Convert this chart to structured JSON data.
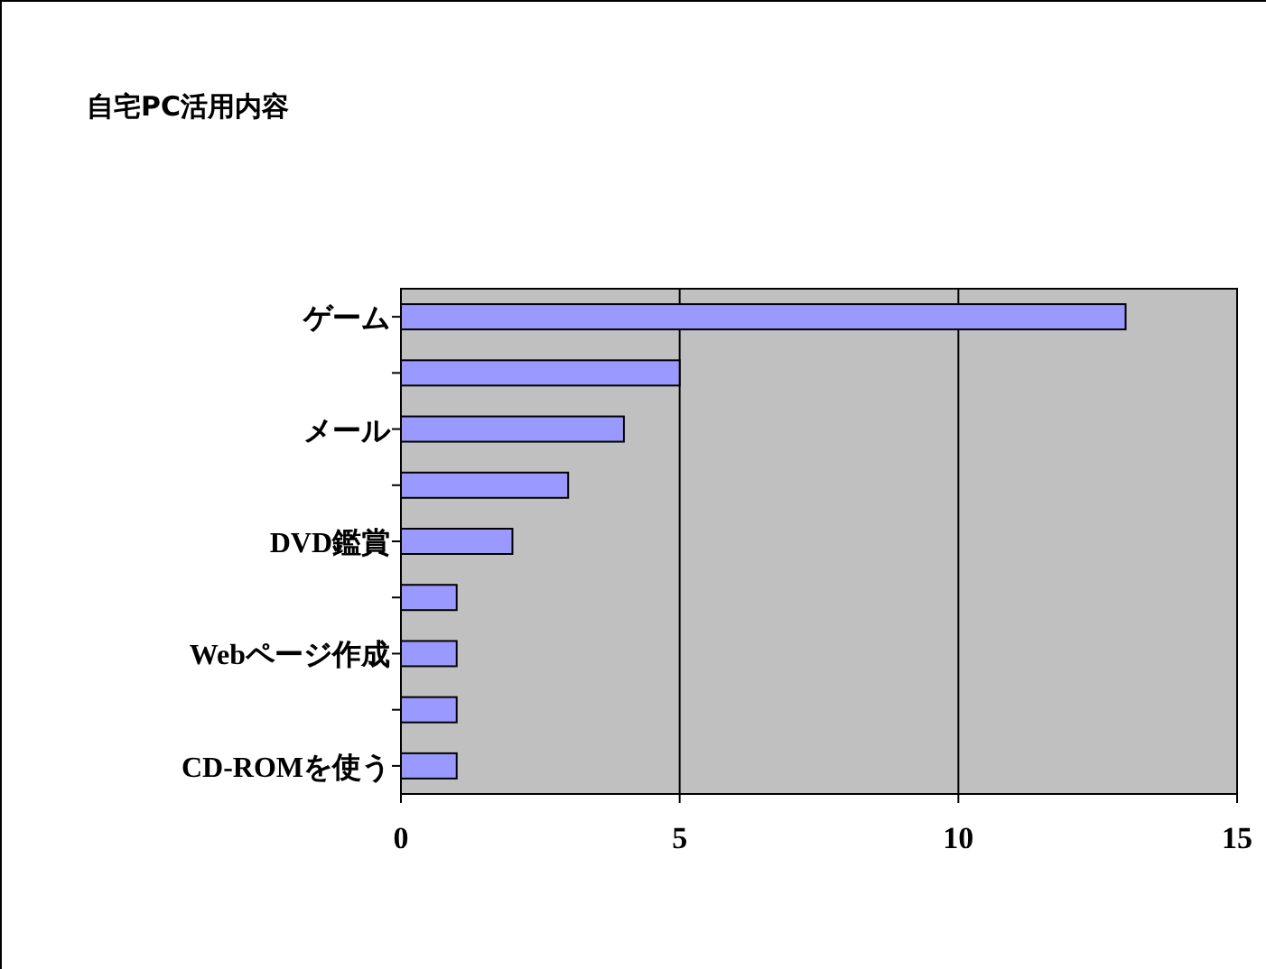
{
  "chart_data": {
    "type": "bar",
    "orientation": "horizontal",
    "title": "自宅PC活用内容",
    "categories": [
      "ゲーム",
      null,
      "メール",
      null,
      "DVD鑑賞",
      null,
      "Webページ作成",
      null,
      "CD-ROMを使う"
    ],
    "values": [
      13,
      5,
      4,
      3,
      2,
      1,
      1,
      1,
      1
    ],
    "color": "#9999ff",
    "xlim": [
      0,
      15
    ],
    "xticks": [
      0,
      5,
      10,
      15
    ],
    "grid": "x"
  }
}
